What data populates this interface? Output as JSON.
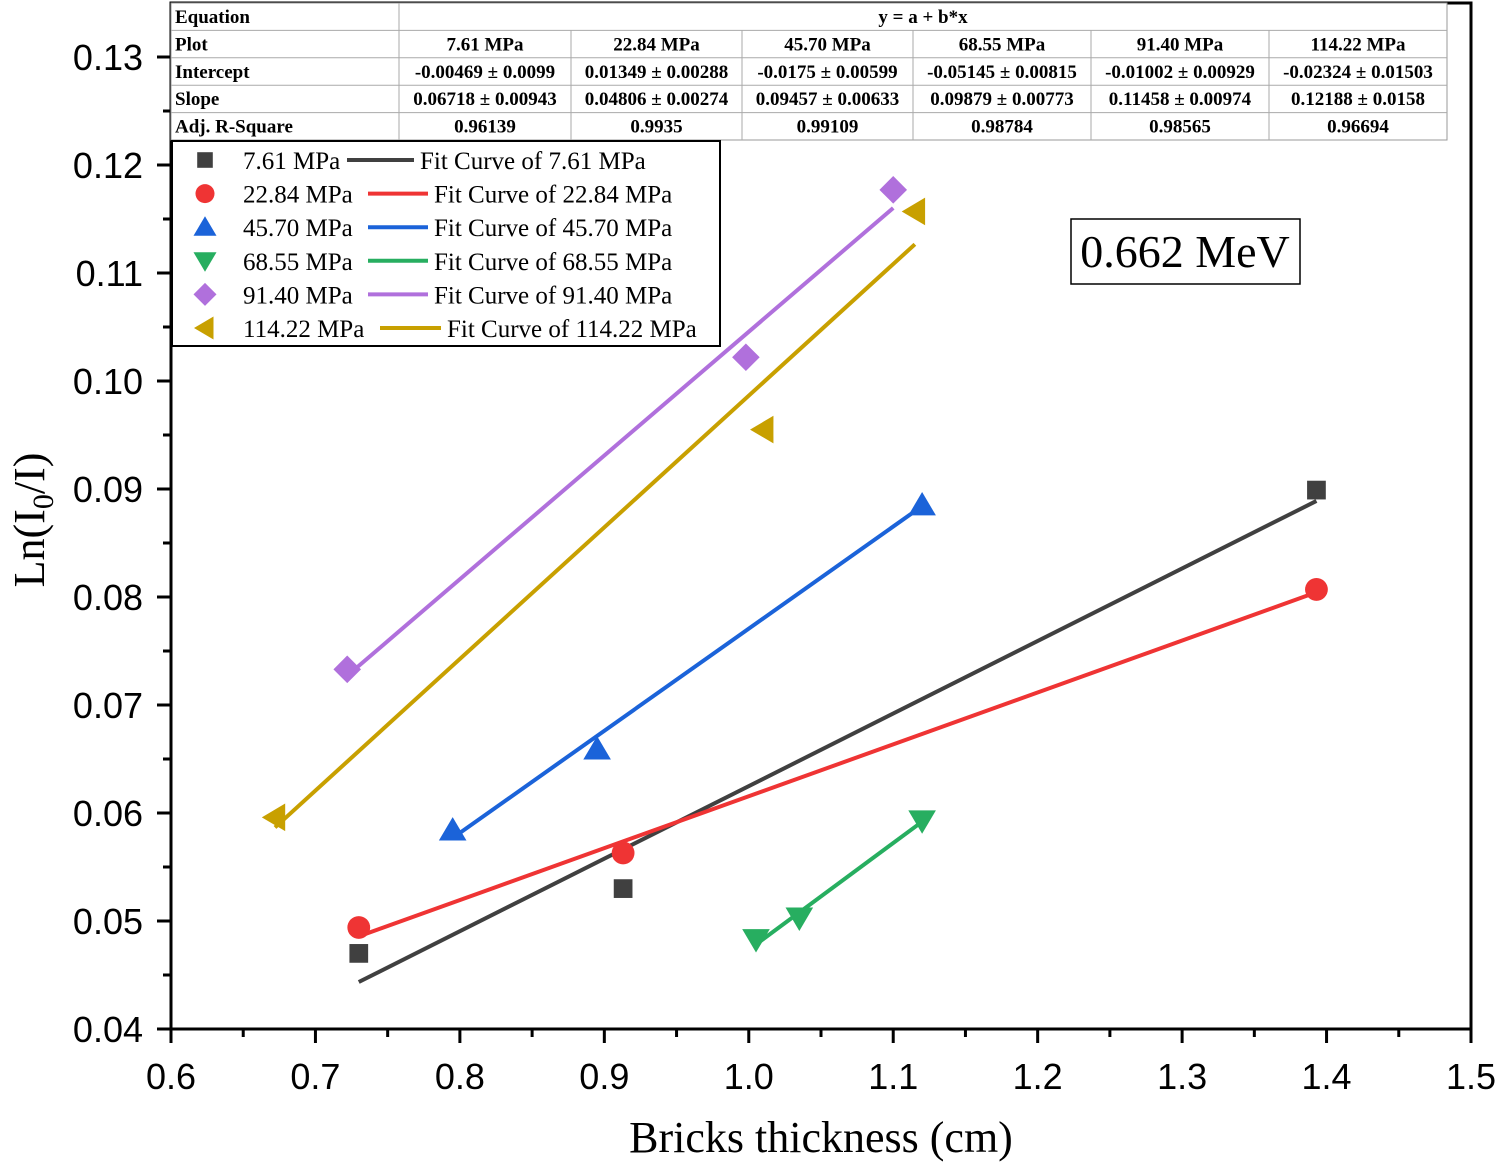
{
  "chart_data": {
    "type": "scatter",
    "xlabel": "Bricks thickness (cm)",
    "ylabel_main": "Ln(I",
    "ylabel_sub": "0",
    "ylabel_tail": "/I)",
    "xlim": [
      0.6,
      1.5
    ],
    "ylim": [
      0.04,
      0.13
    ],
    "x_ticks": [
      "0.6",
      "0.7",
      "0.8",
      "0.9",
      "1.0",
      "1.1",
      "1.2",
      "1.3",
      "1.4",
      "1.5"
    ],
    "y_ticks": [
      "0.04",
      "0.05",
      "0.06",
      "0.07",
      "0.08",
      "0.09",
      "0.10",
      "0.11",
      "0.12",
      "0.13"
    ],
    "annotation": "0.662 MeV",
    "legend_location": "upper-left",
    "series": [
      {
        "name": "7.61 MPa",
        "fit_name": "Fit Curve of 7.61 MPa",
        "color": "#404040",
        "marker": "square",
        "x": [
          0.73,
          0.913,
          1.393
        ],
        "y": [
          0.047,
          0.053,
          0.0899
        ],
        "intercept": -0.00469,
        "slope": 0.06718,
        "fit_x": [
          0.73,
          1.393
        ]
      },
      {
        "name": "22.84 MPa",
        "fit_name": "Fit Curve of 22.84 MPa",
        "color": "#ef3434",
        "marker": "circle",
        "x": [
          0.73,
          0.913,
          1.393
        ],
        "y": [
          0.0494,
          0.0563,
          0.0807
        ],
        "intercept": 0.01349,
        "slope": 0.04806,
        "fit_x": [
          0.73,
          1.393
        ]
      },
      {
        "name": "45.70 MPa",
        "fit_name": "Fit Curve of 45.70 MPa",
        "color": "#1b63d9",
        "marker": "triangle-up",
        "x": [
          0.795,
          0.895,
          1.12
        ],
        "y": [
          0.0584,
          0.0659,
          0.0885
        ],
        "intercept": -0.0175,
        "slope": 0.09457,
        "fit_x": [
          0.795,
          1.12
        ]
      },
      {
        "name": "68.55 MPa",
        "fit_name": "Fit Curve of 68.55 MPa",
        "color": "#27ae60",
        "marker": "triangle-down",
        "x": [
          1.005,
          1.035,
          1.12
        ],
        "y": [
          0.0483,
          0.0503,
          0.0593
        ],
        "intercept": -0.05145,
        "slope": 0.09879,
        "fit_x": [
          1.005,
          1.12
        ]
      },
      {
        "name": "91.40 MPa",
        "fit_name": "Fit Curve of 91.40 MPa",
        "color": "#b070dc",
        "marker": "diamond",
        "x": [
          0.722,
          0.998,
          1.1
        ],
        "y": [
          0.0733,
          0.1022,
          0.1177
        ],
        "intercept": -0.01002,
        "slope": 0.11458,
        "fit_x": [
          0.722,
          1.1
        ]
      },
      {
        "name": "114.22 MPa",
        "fit_name": "Fit Curve of 114.22 MPa",
        "color": "#c8a000",
        "marker": "triangle-left",
        "x": [
          0.672,
          1.01,
          1.115
        ],
        "y": [
          0.0596,
          0.0955,
          0.1157
        ],
        "intercept": -0.02324,
        "slope": 0.12188,
        "fit_x": [
          0.672,
          1.115
        ]
      }
    ],
    "fit_table": {
      "row_labels": [
        "Equation",
        "Plot",
        "Intercept",
        "Slope",
        "Adj. R-Square"
      ],
      "equation": "y = a + b*x",
      "plots": [
        "7.61 MPa",
        "22.84 MPa",
        "45.70 MPa",
        "68.55 MPa",
        "91.40 MPa",
        "114.22 MPa"
      ],
      "intercepts": [
        "-0.00469 ± 0.0099",
        "0.01349 ± 0.00288",
        "-0.0175 ± 0.00599",
        "-0.05145 ± 0.00815",
        "-0.01002 ± 0.00929",
        "-0.02324 ± 0.01503"
      ],
      "slopes": [
        "0.06718 ± 0.00943",
        "0.04806 ± 0.00274",
        "0.09457 ± 0.00633",
        "0.09879 ± 0.00773",
        "0.11458 ± 0.00974",
        "0.12188 ± 0.0158"
      ],
      "r_squares": [
        "0.96139",
        "0.9935",
        "0.99109",
        "0.98784",
        "0.98565",
        "0.96694"
      ]
    }
  }
}
